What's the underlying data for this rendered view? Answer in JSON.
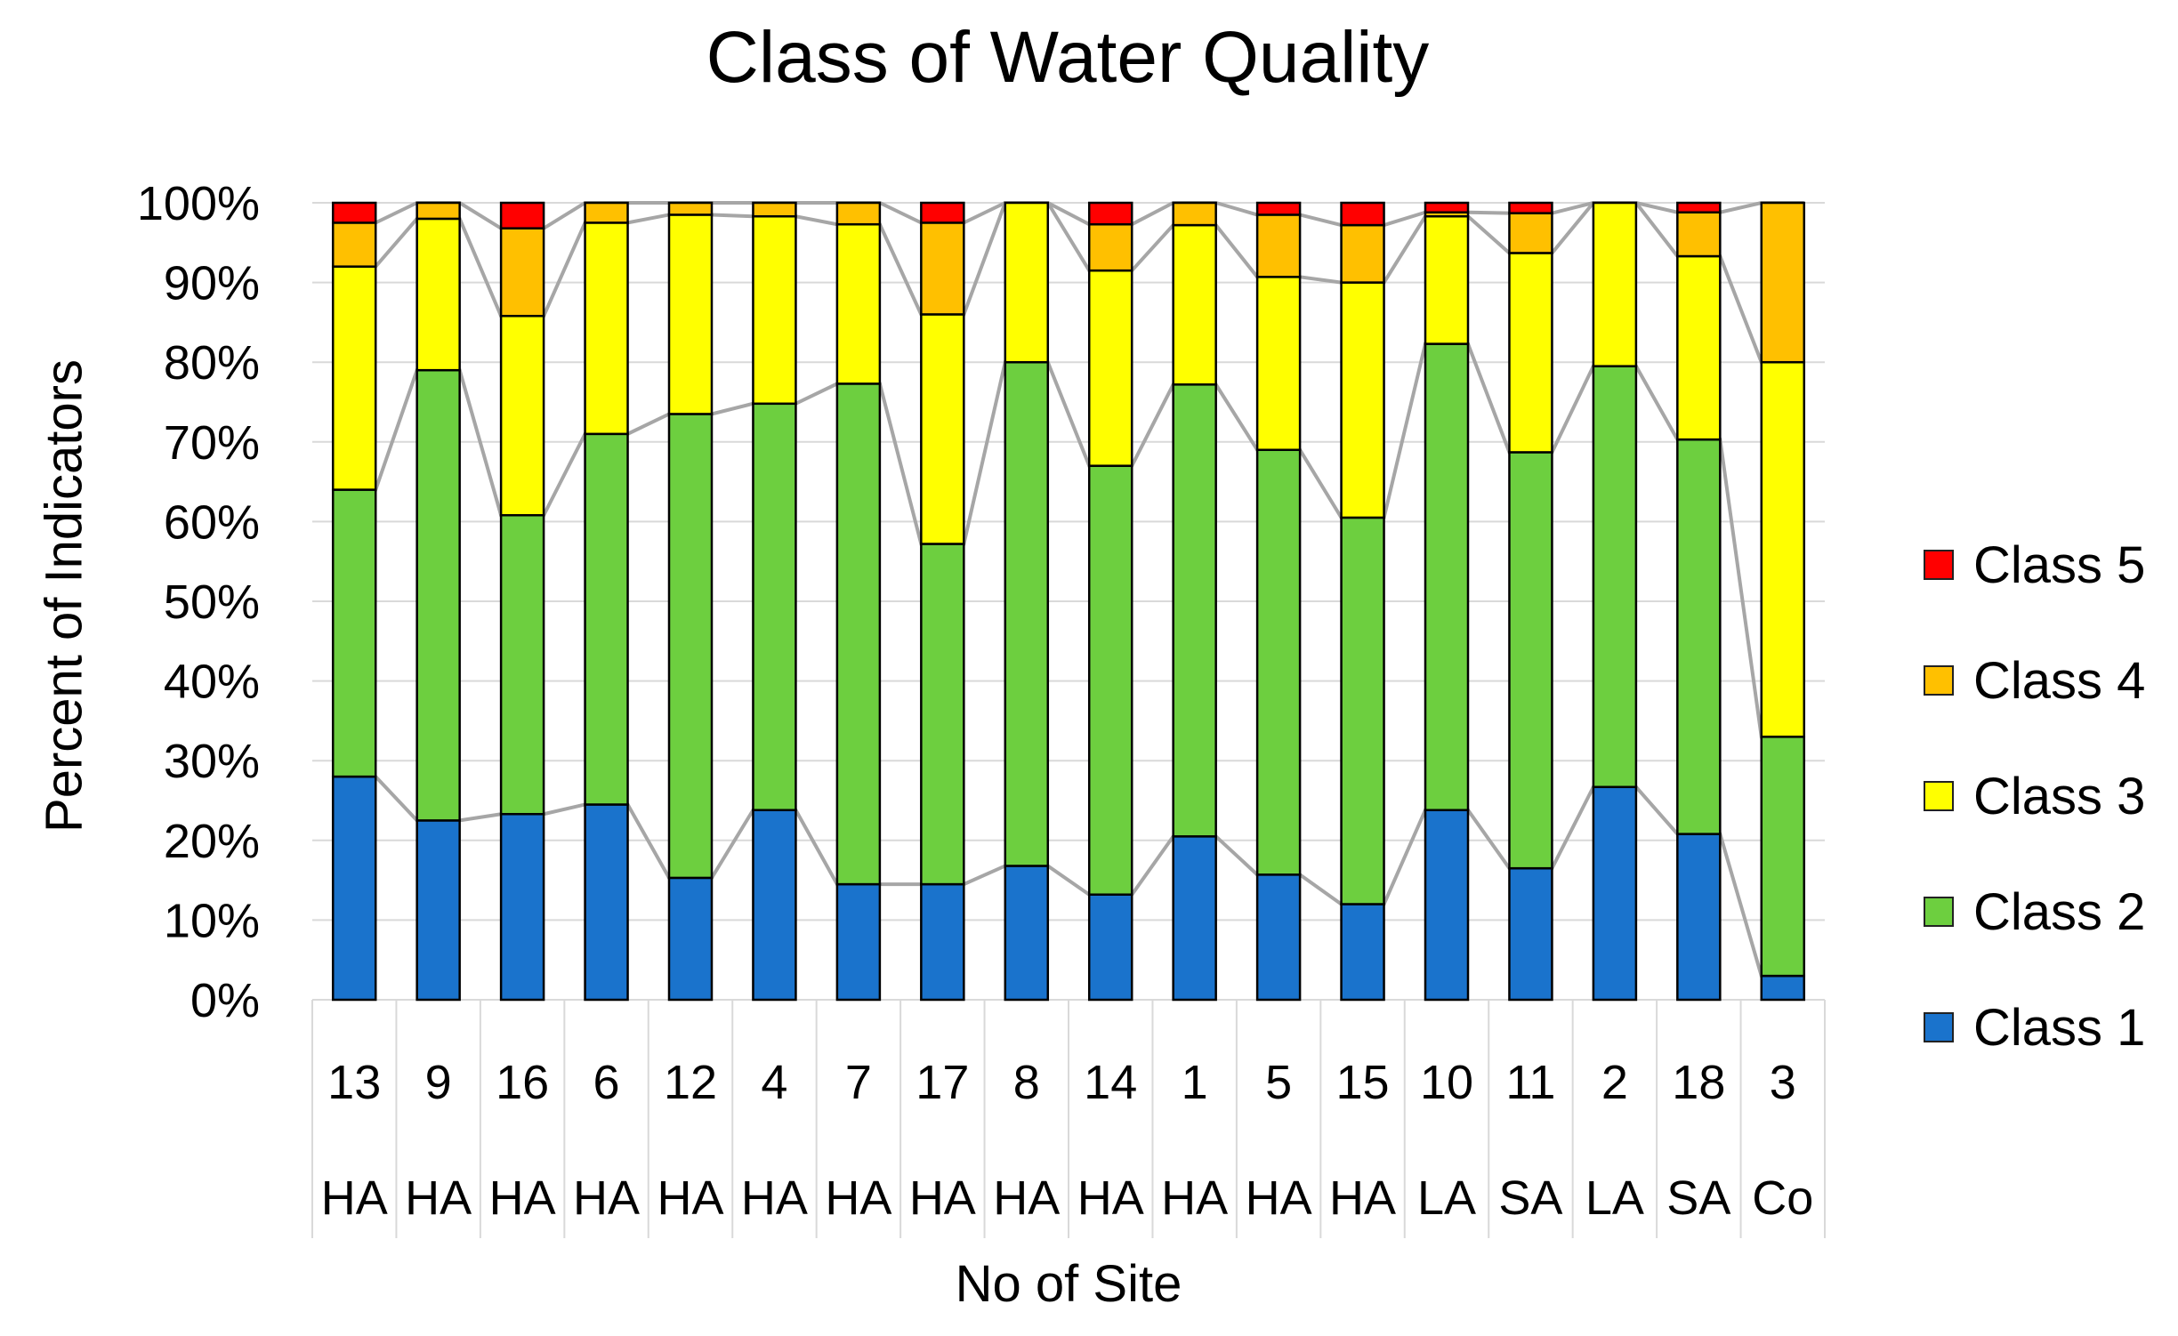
{
  "chart_data": {
    "type": "bar",
    "stacked": true,
    "percent": true,
    "title": "Class of Water Quality",
    "xlabel": "No of Site",
    "ylabel": "Percent of Indicators",
    "ylim": [
      0,
      100
    ],
    "yticks": [
      "0%",
      "10%",
      "20%",
      "30%",
      "40%",
      "50%",
      "60%",
      "70%",
      "80%",
      "90%",
      "100%"
    ],
    "categories": [
      {
        "site": "13",
        "group": "HA"
      },
      {
        "site": "9",
        "group": "HA"
      },
      {
        "site": "16",
        "group": "HA"
      },
      {
        "site": "6",
        "group": "HA"
      },
      {
        "site": "12",
        "group": "HA"
      },
      {
        "site": "4",
        "group": "HA"
      },
      {
        "site": "7",
        "group": "HA"
      },
      {
        "site": "17",
        "group": "HA"
      },
      {
        "site": "8",
        "group": "HA"
      },
      {
        "site": "14",
        "group": "HA"
      },
      {
        "site": "1",
        "group": "HA"
      },
      {
        "site": "5",
        "group": "HA"
      },
      {
        "site": "15",
        "group": "HA"
      },
      {
        "site": "10",
        "group": "LA"
      },
      {
        "site": "11",
        "group": "SA"
      },
      {
        "site": "2",
        "group": "LA"
      },
      {
        "site": "18",
        "group": "SA"
      },
      {
        "site": "3",
        "group": "Co"
      }
    ],
    "series": [
      {
        "name": "Class 1",
        "color": "#1a73cc",
        "values": [
          28,
          22.5,
          23.3,
          24.5,
          15.3,
          23.8,
          14.5,
          14.5,
          16.8,
          13.2,
          20.5,
          15.7,
          12,
          23.8,
          16.5,
          26.7,
          20.8,
          3
        ]
      },
      {
        "name": "Class 2",
        "color": "#6dcf3f",
        "values": [
          36,
          56.5,
          37.5,
          46.5,
          58.2,
          51,
          62.8,
          42.7,
          63.2,
          53.8,
          56.7,
          53.3,
          48.5,
          58.5,
          52.2,
          52.8,
          49.5,
          30
        ]
      },
      {
        "name": "Class 3",
        "color": "#ffff00",
        "values": [
          28,
          19,
          25,
          26.5,
          25,
          23.5,
          20,
          28.8,
          20,
          24.5,
          20,
          21.7,
          29.5,
          16,
          25,
          20.5,
          23,
          47
        ]
      },
      {
        "name": "Class 4",
        "color": "#ffc000",
        "values": [
          5.5,
          2,
          11,
          2.5,
          1.5,
          1.7,
          2.8,
          11.5,
          0,
          5.8,
          2.8,
          7.8,
          7.2,
          0.5,
          5,
          0,
          5.5,
          20
        ]
      },
      {
        "name": "Class 5",
        "color": "#ff0000",
        "values": [
          2.5,
          0,
          3.2,
          0,
          0,
          0,
          0,
          2.5,
          0,
          2.7,
          0,
          1.5,
          2.8,
          1.2,
          1.3,
          0,
          1.2,
          0
        ]
      }
    ],
    "legend": {
      "position": "right",
      "order": [
        "Class 5",
        "Class 4",
        "Class 3",
        "Class 2",
        "Class 1"
      ]
    },
    "grid": true
  }
}
